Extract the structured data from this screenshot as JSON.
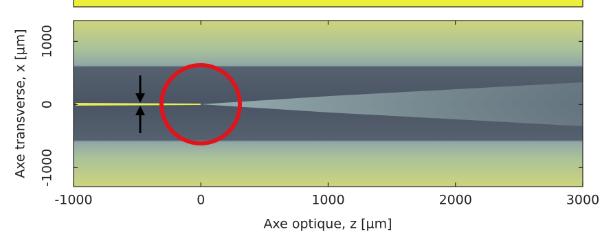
{
  "chart_data": {
    "type": "image",
    "x_label": "Axe optique, z [µm]",
    "y_label": "Axe transverse, x [µm]",
    "xlim": [
      -1000,
      3000
    ],
    "xticks": [
      -1000,
      0,
      1000,
      2000,
      3000
    ],
    "ylim": [
      -1300,
      1330
    ],
    "yticks": [
      -1000,
      0,
      1000
    ]
  }
}
